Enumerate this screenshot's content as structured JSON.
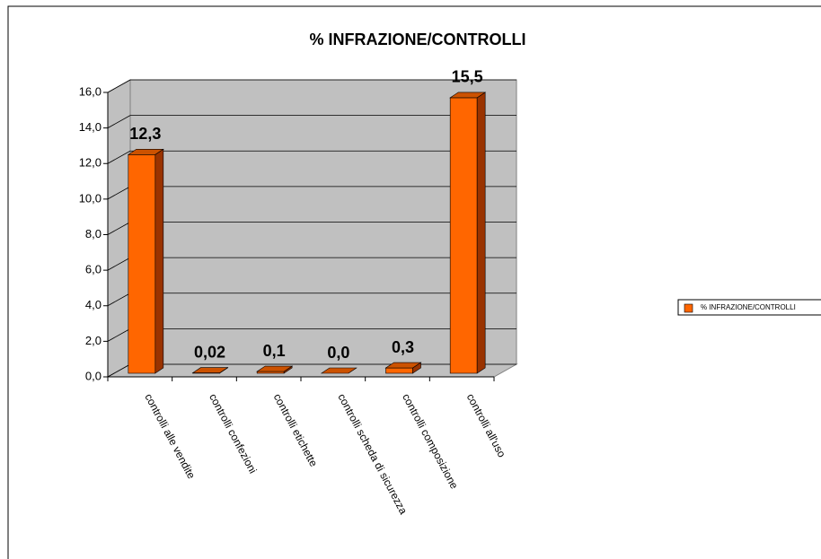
{
  "chart_data": {
    "type": "bar3d",
    "title": "% INFRAZIONE/CONTROLLI",
    "categories": [
      "controlli alle vendite",
      "controlli confezioni",
      "controlli etichette",
      "controlli scheda di sicurezza",
      "controlli  composizione",
      "controlli all'uso"
    ],
    "series": [
      {
        "name": "% INFRAZIONE/CONTROLLI",
        "color": "#ff6600",
        "values": [
          12.3,
          0.02,
          0.1,
          0.0,
          0.3,
          15.5
        ],
        "value_labels": [
          "12,3",
          "0,02",
          "0,1",
          "0,0",
          "0,3",
          "15,5"
        ]
      }
    ],
    "ylim": [
      0,
      16
    ],
    "yticks": [
      {
        "value": 0,
        "label": "0,0"
      },
      {
        "value": 2,
        "label": "2,0"
      },
      {
        "value": 4,
        "label": "4,0"
      },
      {
        "value": 6,
        "label": "6,0"
      },
      {
        "value": 8,
        "label": "8,0"
      },
      {
        "value": 10,
        "label": "10,0"
      },
      {
        "value": 12,
        "label": "12,0"
      },
      {
        "value": 14,
        "label": "14,0"
      },
      {
        "value": 16,
        "label": "16,0"
      }
    ],
    "grid": true,
    "legend": "right"
  }
}
